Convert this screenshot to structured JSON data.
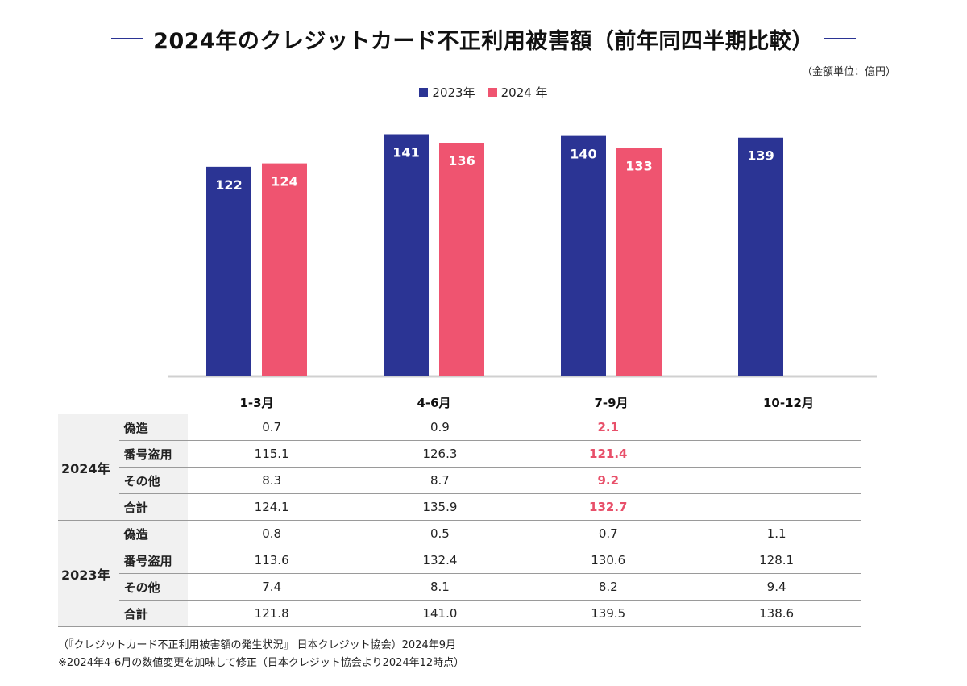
{
  "title": "2024年のクレジットカード不正利用被害額（前年同四半期比較）",
  "unit_note": "（金額単位：億円）",
  "colors": {
    "accent_2023": "#2b3494",
    "accent_2024": "#ef5470",
    "highlight_text": "#e8506a",
    "title_line": "#2b3494"
  },
  "legend": [
    {
      "label": "2023年",
      "color": "#2b3494"
    },
    {
      "label": "2024 年",
      "color": "#ef5470"
    }
  ],
  "chart_data": {
    "type": "bar",
    "title": "2024年のクレジットカード不正利用被害額（前年同四半期比較）",
    "categories": [
      "1-3月",
      "4-6月",
      "7-9月",
      "10-12月"
    ],
    "series": [
      {
        "name": "2023年",
        "values": [
          122,
          141,
          140,
          139
        ],
        "labels": [
          "122",
          "141",
          "140",
          "139"
        ]
      },
      {
        "name": "2024 年",
        "values": [
          124,
          136,
          133,
          null
        ],
        "labels": [
          "124",
          "136",
          "133",
          ""
        ]
      }
    ],
    "ylim": [
      0,
      145
    ],
    "grid": false,
    "legend_position": "top-center"
  },
  "table": {
    "columns": [
      "1-3月",
      "4-6月",
      "7-9月",
      "10-12月"
    ],
    "groups": [
      {
        "year": "2024年",
        "rows": [
          {
            "label": "偽造",
            "values": [
              "0.7",
              "0.9",
              "2.1",
              ""
            ]
          },
          {
            "label": "番号盗用",
            "values": [
              "115.1",
              "126.3",
              "121.4",
              ""
            ]
          },
          {
            "label": "その他",
            "values": [
              "8.3",
              "8.7",
              "9.2",
              ""
            ]
          },
          {
            "label": "合計",
            "values": [
              "124.1",
              "135.9",
              "132.7",
              ""
            ]
          }
        ]
      },
      {
        "year": "2023年",
        "rows": [
          {
            "label": "偽造",
            "values": [
              "0.8",
              "0.5",
              "0.7",
              "1.1"
            ]
          },
          {
            "label": "番号盗用",
            "values": [
              "113.6",
              "132.4",
              "130.6",
              "128.1"
            ]
          },
          {
            "label": "その他",
            "values": [
              "7.4",
              "8.1",
              "8.2",
              "9.4"
            ]
          },
          {
            "label": "合計",
            "values": [
              "121.8",
              "141.0",
              "139.5",
              "138.6"
            ]
          }
        ]
      }
    ]
  },
  "source_lines": [
    "（『クレジットカード不正利用被害額の発生状況』 日本クレジット協会）2024年9月",
    "※2024年4-6月の数値変更を加味して修正（日本クレジット協会より2024年12時点）"
  ]
}
